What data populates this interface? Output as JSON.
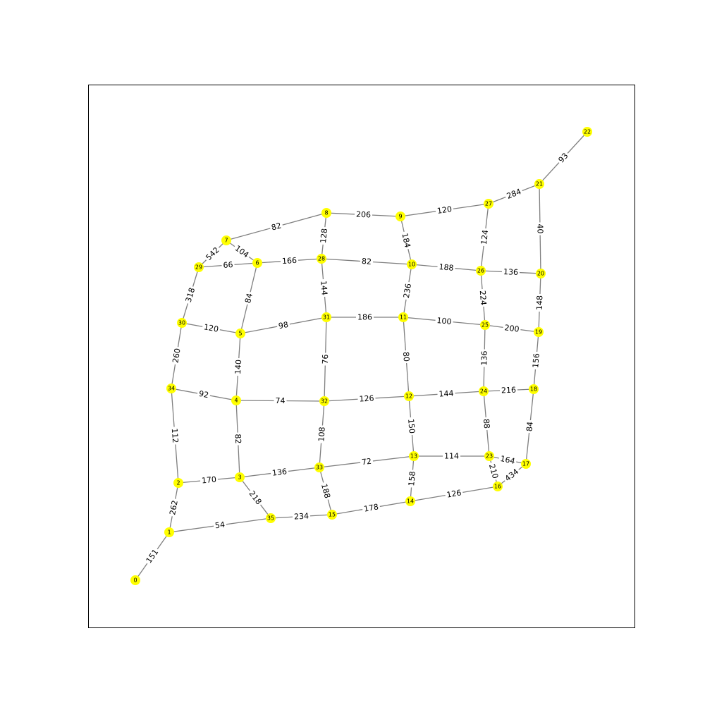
{
  "graph": {
    "node_color": "#ffff00",
    "edge_color": "#7f7f7f",
    "nodes": [
      "0",
      "1",
      "2",
      "3",
      "4",
      "5",
      "6",
      "7",
      "8",
      "9",
      "10",
      "11",
      "12",
      "13",
      "14",
      "15",
      "16",
      "17",
      "18",
      "19",
      "20",
      "21",
      "22",
      "23",
      "24",
      "25",
      "26",
      "27",
      "28",
      "29",
      "30",
      "31",
      "32",
      "33",
      "34",
      "35"
    ],
    "edges": [
      {
        "source": "0",
        "target": "1",
        "label": "151"
      },
      {
        "source": "1",
        "target": "2",
        "label": "262"
      },
      {
        "source": "1",
        "target": "35",
        "label": "54"
      },
      {
        "source": "2",
        "target": "34",
        "label": "112"
      },
      {
        "source": "2",
        "target": "3",
        "label": "170"
      },
      {
        "source": "3",
        "target": "35",
        "label": "218"
      },
      {
        "source": "3",
        "target": "4",
        "label": "82"
      },
      {
        "source": "3",
        "target": "33",
        "label": "136"
      },
      {
        "source": "34",
        "target": "30",
        "label": "260"
      },
      {
        "source": "34",
        "target": "4",
        "label": "92"
      },
      {
        "source": "4",
        "target": "5",
        "label": "140"
      },
      {
        "source": "4",
        "target": "32",
        "label": "74"
      },
      {
        "source": "30",
        "target": "29",
        "label": "318"
      },
      {
        "source": "30",
        "target": "5",
        "label": "120"
      },
      {
        "source": "5",
        "target": "6",
        "label": "84"
      },
      {
        "source": "5",
        "target": "31",
        "label": "98"
      },
      {
        "source": "29",
        "target": "7",
        "label": "542"
      },
      {
        "source": "29",
        "target": "6",
        "label": "66"
      },
      {
        "source": "7",
        "target": "6",
        "label": "104"
      },
      {
        "source": "7",
        "target": "8",
        "label": "82"
      },
      {
        "source": "6",
        "target": "28",
        "label": "166"
      },
      {
        "source": "8",
        "target": "28",
        "label": "128"
      },
      {
        "source": "8",
        "target": "9",
        "label": "206"
      },
      {
        "source": "28",
        "target": "31",
        "label": "144"
      },
      {
        "source": "28",
        "target": "10",
        "label": "82"
      },
      {
        "source": "31",
        "target": "32",
        "label": "76"
      },
      {
        "source": "31",
        "target": "11",
        "label": "186"
      },
      {
        "source": "32",
        "target": "33",
        "label": "108"
      },
      {
        "source": "32",
        "target": "12",
        "label": "126"
      },
      {
        "source": "33",
        "target": "15",
        "label": "188"
      },
      {
        "source": "33",
        "target": "13",
        "label": "72"
      },
      {
        "source": "35",
        "target": "15",
        "label": "234"
      },
      {
        "source": "15",
        "target": "14",
        "label": "178"
      },
      {
        "source": "9",
        "target": "10",
        "label": "184"
      },
      {
        "source": "9",
        "target": "27",
        "label": "120"
      },
      {
        "source": "10",
        "target": "11",
        "label": "236"
      },
      {
        "source": "10",
        "target": "26",
        "label": "188"
      },
      {
        "source": "11",
        "target": "12",
        "label": "80"
      },
      {
        "source": "11",
        "target": "25",
        "label": "100"
      },
      {
        "source": "12",
        "target": "13",
        "label": "150"
      },
      {
        "source": "12",
        "target": "24",
        "label": "144"
      },
      {
        "source": "13",
        "target": "14",
        "label": "158"
      },
      {
        "source": "13",
        "target": "23",
        "label": "114"
      },
      {
        "source": "14",
        "target": "16",
        "label": "126"
      },
      {
        "source": "27",
        "target": "26",
        "label": "124"
      },
      {
        "source": "27",
        "target": "21",
        "label": "284"
      },
      {
        "source": "26",
        "target": "25",
        "label": "224"
      },
      {
        "source": "26",
        "target": "20",
        "label": "136"
      },
      {
        "source": "25",
        "target": "24",
        "label": "136"
      },
      {
        "source": "25",
        "target": "19",
        "label": "200"
      },
      {
        "source": "24",
        "target": "23",
        "label": "88"
      },
      {
        "source": "24",
        "target": "18",
        "label": "216"
      },
      {
        "source": "23",
        "target": "16",
        "label": "210"
      },
      {
        "source": "23",
        "target": "17",
        "label": "164"
      },
      {
        "source": "16",
        "target": "17",
        "label": "434"
      },
      {
        "source": "21",
        "target": "22",
        "label": "93"
      },
      {
        "source": "21",
        "target": "20",
        "label": "40"
      },
      {
        "source": "20",
        "target": "19",
        "label": "148"
      },
      {
        "source": "19",
        "target": "18",
        "label": "156"
      },
      {
        "source": "18",
        "target": "17",
        "label": "84"
      }
    ]
  }
}
